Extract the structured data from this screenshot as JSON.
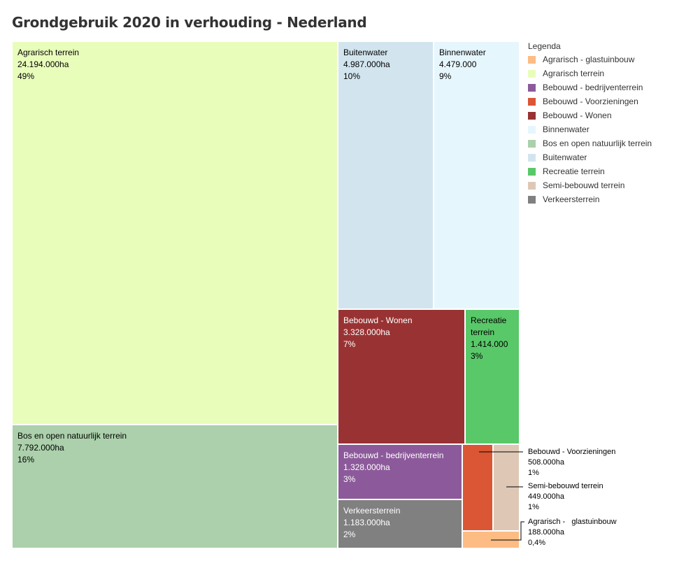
{
  "title": "Grondgebruik 2020 in verhouding - Nederland",
  "chart_data": {
    "type": "treemap",
    "title": "Grondgebruik 2020 in verhouding - Nederland",
    "unit": "ha",
    "items": [
      {
        "name": "Agrarisch terrein",
        "value_label": "24.194.000ha",
        "value": 24194000,
        "percent": "49%",
        "color": "#e9fdbb"
      },
      {
        "name": "Bos en open natuurlijk terrein",
        "value_label": "7.792.000ha",
        "value": 7792000,
        "percent": "16%",
        "color": "#abd0ab"
      },
      {
        "name": "Buitenwater",
        "value_label": "4.987.000ha",
        "value": 4987000,
        "percent": "10%",
        "color": "#d2e5ef"
      },
      {
        "name": "Binnenwater",
        "value_label": "4.479.000",
        "value": 4479000,
        "percent": "9%",
        "color": "#e6f6fd"
      },
      {
        "name": "Bebouwd - Wonen",
        "value_label": "3.328.000ha",
        "value": 3328000,
        "percent": "7%",
        "color": "#993333"
      },
      {
        "name": "Recreatie terrein",
        "value_label": "1.414.000",
        "value": 1414000,
        "percent": "3%",
        "color": "#59c869"
      },
      {
        "name": "Bebouwd - bedrijventerrein",
        "value_label": "1.328.000ha",
        "value": 1328000,
        "percent": "3%",
        "color": "#8c5a9a"
      },
      {
        "name": "Verkeersterrein",
        "value_label": "1.183.000ha",
        "value": 1183000,
        "percent": "2%",
        "color": "#808080"
      },
      {
        "name": "Bebouwd - Voorzieningen",
        "value_label": "508.000ha",
        "value": 508000,
        "percent": "1%",
        "color": "#db5634"
      },
      {
        "name": "Semi-bebouwd terrein",
        "value_label": "449.000ha",
        "value": 449000,
        "percent": "1%",
        "color": "#dec8b5"
      },
      {
        "name": "Agrarisch -   glastuinbouw",
        "value_label": "188.000ha",
        "value": 188000,
        "percent": "0,4%",
        "color": "#fcbc84"
      }
    ],
    "legend": {
      "title": "Legenda",
      "position": "right",
      "entries": [
        {
          "label": "Agrarisch - glastuinbouw",
          "color": "#fcbc84"
        },
        {
          "label": "Agrarisch terrein",
          "color": "#e9fdbb"
        },
        {
          "label": "Bebouwd - bedrijventerrein",
          "color": "#8c5a9a"
        },
        {
          "label": "Bebouwd - Voorzieningen",
          "color": "#db5634"
        },
        {
          "label": "Bebouwd - Wonen",
          "color": "#993333"
        },
        {
          "label": "Binnenwater",
          "color": "#e6f6fd"
        },
        {
          "label": "Bos en open natuurlijk terrein",
          "color": "#abd0ab"
        },
        {
          "label": "Buitenwater",
          "color": "#d2e5ef"
        },
        {
          "label": "Recreatie terrein",
          "color": "#59c869"
        },
        {
          "label": "Semi-bebouwd terrein",
          "color": "#dec8b5"
        },
        {
          "label": "Verkeersterrein",
          "color": "#808080"
        }
      ]
    }
  }
}
